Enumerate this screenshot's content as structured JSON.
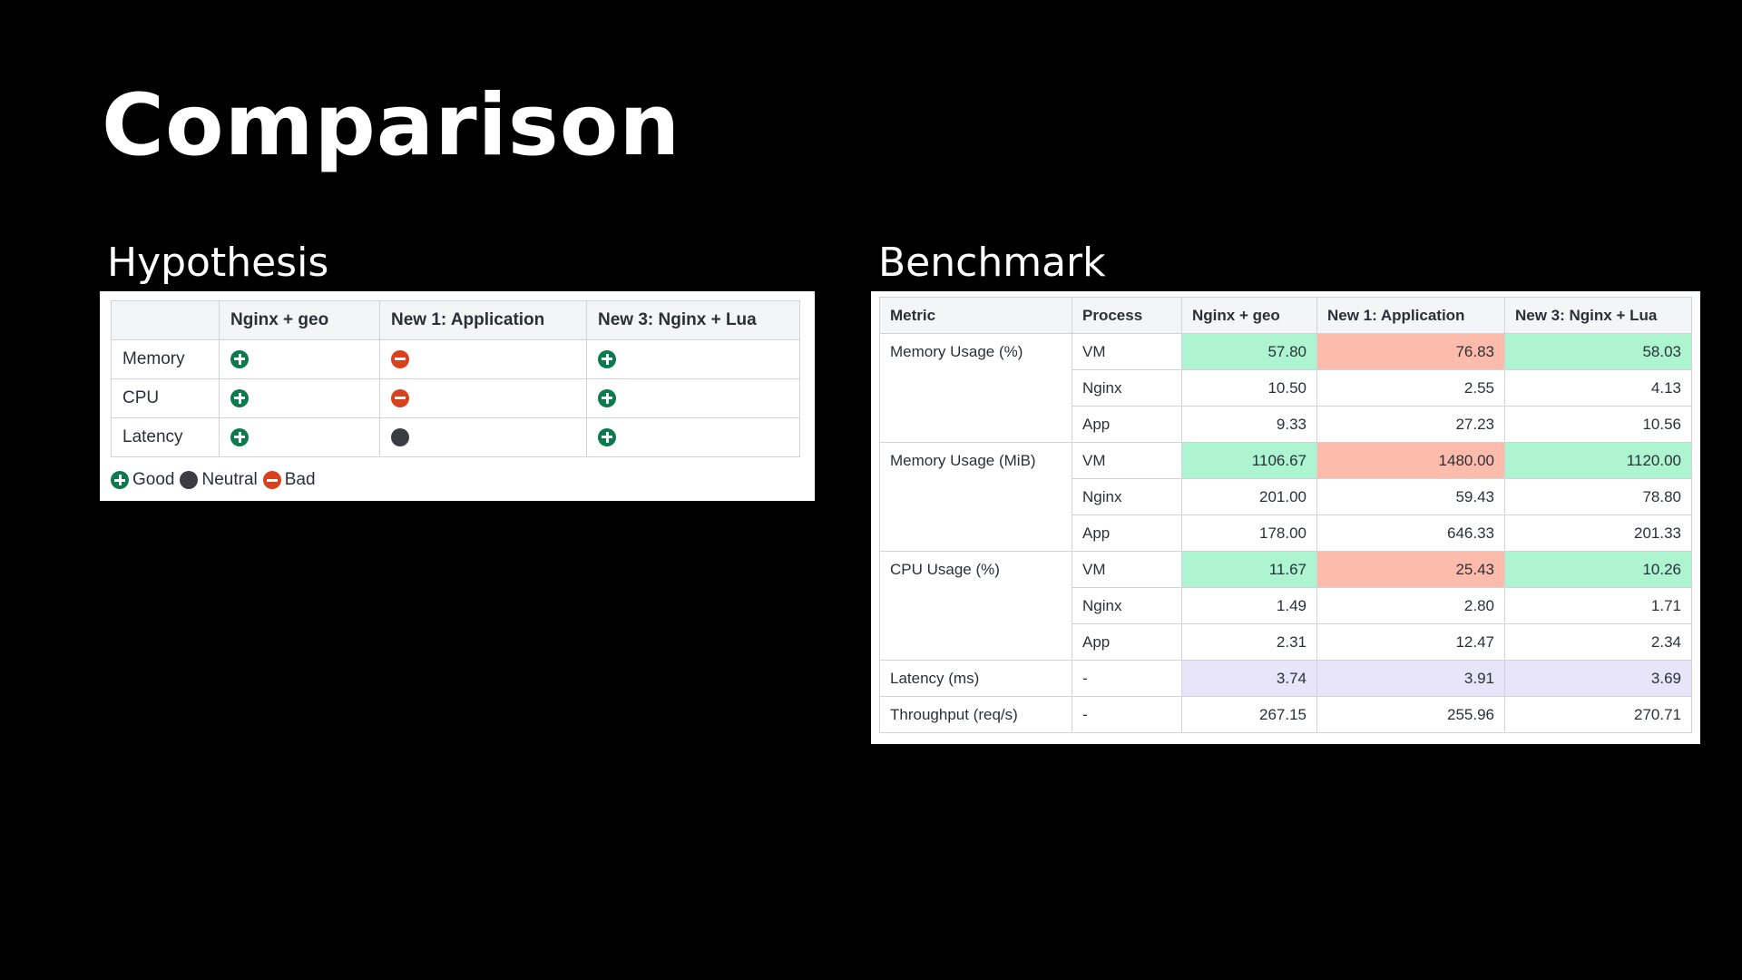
{
  "title": "Comparison",
  "hypothesis": {
    "title": "Hypothesis",
    "headers": [
      "",
      "Nginx + geo",
      "New 1: Application",
      "New 3: Nginx + Lua"
    ],
    "rows": [
      {
        "label": "Memory",
        "values": [
          "good",
          "bad",
          "good"
        ]
      },
      {
        "label": "CPU",
        "values": [
          "good",
          "bad",
          "good"
        ]
      },
      {
        "label": "Latency",
        "values": [
          "good",
          "neutral",
          "good"
        ]
      }
    ],
    "legend": {
      "good": "Good",
      "neutral": "Neutral",
      "bad": "Bad"
    },
    "icons": {
      "good": "plus-circle-icon",
      "bad": "minus-circle-icon",
      "neutral": "dot-circle-icon"
    },
    "colors": {
      "good": "#0b7a4c",
      "bad": "#d9411e",
      "neutral": "#3a3d42"
    }
  },
  "benchmark": {
    "title": "Benchmark",
    "headers": [
      "Metric",
      "Process",
      "Nginx + geo",
      "New 1: Application",
      "New 3: Nginx + Lua"
    ],
    "groups": [
      {
        "metric": "Memory Usage (%)",
        "rows": [
          {
            "process": "VM",
            "values": [
              "57.80",
              "76.83",
              "58.03"
            ],
            "highlight": [
              "green",
              "red",
              "green"
            ]
          },
          {
            "process": "Nginx",
            "values": [
              "10.50",
              "2.55",
              "4.13"
            ],
            "highlight": [
              "",
              "",
              ""
            ]
          },
          {
            "process": "App",
            "values": [
              "9.33",
              "27.23",
              "10.56"
            ],
            "highlight": [
              "",
              "",
              ""
            ]
          }
        ]
      },
      {
        "metric": "Memory Usage (MiB)",
        "rows": [
          {
            "process": "VM",
            "values": [
              "1106.67",
              "1480.00",
              "1120.00"
            ],
            "highlight": [
              "green",
              "red",
              "green"
            ]
          },
          {
            "process": "Nginx",
            "values": [
              "201.00",
              "59.43",
              "78.80"
            ],
            "highlight": [
              "",
              "",
              ""
            ]
          },
          {
            "process": "App",
            "values": [
              "178.00",
              "646.33",
              "201.33"
            ],
            "highlight": [
              "",
              "",
              ""
            ]
          }
        ]
      },
      {
        "metric": "CPU Usage (%)",
        "rows": [
          {
            "process": "VM",
            "values": [
              "11.67",
              "25.43",
              "10.26"
            ],
            "highlight": [
              "green",
              "red",
              "green"
            ]
          },
          {
            "process": "Nginx",
            "values": [
              "1.49",
              "2.80",
              "1.71"
            ],
            "highlight": [
              "",
              "",
              ""
            ]
          },
          {
            "process": "App",
            "values": [
              "2.31",
              "12.47",
              "2.34"
            ],
            "highlight": [
              "",
              "",
              ""
            ]
          }
        ]
      },
      {
        "metric": "Latency (ms)",
        "rows": [
          {
            "process": "-",
            "values": [
              "3.74",
              "3.91",
              "3.69"
            ],
            "highlight": [
              "lavender",
              "lavender",
              "lavender"
            ]
          }
        ]
      },
      {
        "metric": "Throughput (req/s)",
        "rows": [
          {
            "process": "-",
            "values": [
              "267.15",
              "255.96",
              "270.71"
            ],
            "highlight": [
              "",
              "",
              ""
            ]
          }
        ]
      }
    ],
    "colors": {
      "green": "#adf5d1",
      "red": "#fdbcab",
      "lavender": "#e8e5fb"
    }
  }
}
